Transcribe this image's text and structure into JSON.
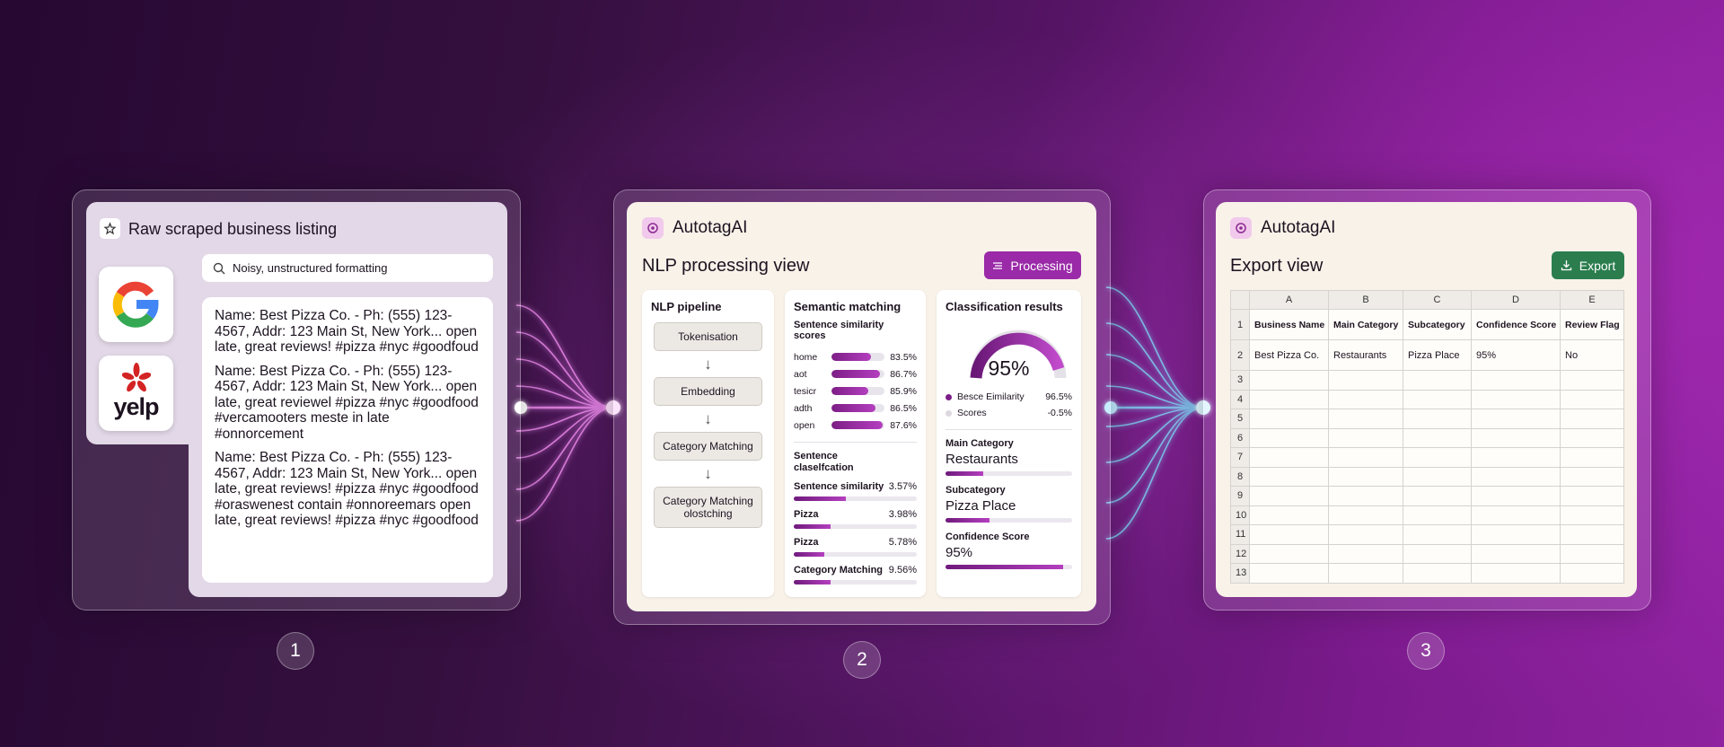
{
  "panel1": {
    "title": "Raw scraped business listing",
    "search": "Noisy, unstructured formatting",
    "logo_text": "yelp",
    "listings": [
      "Name: Best Pizza Co. - Ph: (555) 123-4567, Addr: 123 Main St, New York... open late, great reviews! #pizza #nyc #goodfoud",
      "Name: Best Pizza Co. - Ph: (555) 123-4567, Addr: 123 Main St, New York... open late, great reviewel #pizza #nyc #goodfood #vercamooters meste in late #onnorcement",
      "Name: Best Pizza Co. - Ph: (555) 123-4567, Addr: 123 Main St, New York... open late, great reviews! #pizza #nyc #goodfood #oraswenest contain #onnoreemars open late, great reviews! #pizza #nyc #goodfood"
    ]
  },
  "panel2": {
    "brand": "AutotagAI",
    "title": "NLP processing view",
    "button": "Processing",
    "pipeline": {
      "title": "NLP pipeline",
      "steps": [
        "Tokenisation",
        "Embedding",
        "Category Matching",
        "Category Matching olostching"
      ]
    },
    "semantic": {
      "title": "Semantic matching",
      "subtitle": "Sentence similarity scores",
      "scores": [
        {
          "label": "home",
          "value": "83.5%"
        },
        {
          "label": "aot",
          "value": "86.7%"
        },
        {
          "label": "tesicr",
          "value": "85.9%"
        },
        {
          "label": "adth",
          "value": "86.5%"
        },
        {
          "label": "open",
          "value": "87.6%"
        }
      ],
      "section": "Sentence claselfcation",
      "items": [
        {
          "label": "Sentence similarity",
          "value": "3.57%"
        },
        {
          "label": "Pizza",
          "value": "3.98%"
        },
        {
          "label": "Pizza",
          "value": "5.78%"
        },
        {
          "label": "Category Matching",
          "value": "9.56%"
        }
      ]
    },
    "classification": {
      "title": "Classification results",
      "gauge": "95%",
      "legend": [
        {
          "label": "Besce Eimilarity",
          "value": "96.5%"
        },
        {
          "label": "Scores",
          "value": "-0.5%"
        }
      ],
      "fields": [
        {
          "label": "Main Category",
          "value": "Restaurants"
        },
        {
          "label": "Subcategory",
          "value": "Pizza Place"
        },
        {
          "label": "Confidence Score",
          "value": "95%"
        }
      ]
    }
  },
  "panel3": {
    "brand": "AutotagAI",
    "title": "Export view",
    "button": "Export",
    "columns": [
      "A",
      "B",
      "C",
      "D",
      "E"
    ],
    "rows": [
      [
        "Business Name",
        "Main Category",
        "Subcategory",
        "Confidence Score",
        "Review Flag"
      ],
      [
        "Best Pizza Co.",
        "Restaurants",
        "Pizza Place",
        "95%",
        "No"
      ]
    ],
    "row_numbers": [
      "1",
      "2",
      "3",
      "4",
      "5",
      "6",
      "7",
      "8",
      "9",
      "10",
      "11",
      "12",
      "13"
    ]
  },
  "steps": [
    "1",
    "2",
    "3"
  ]
}
